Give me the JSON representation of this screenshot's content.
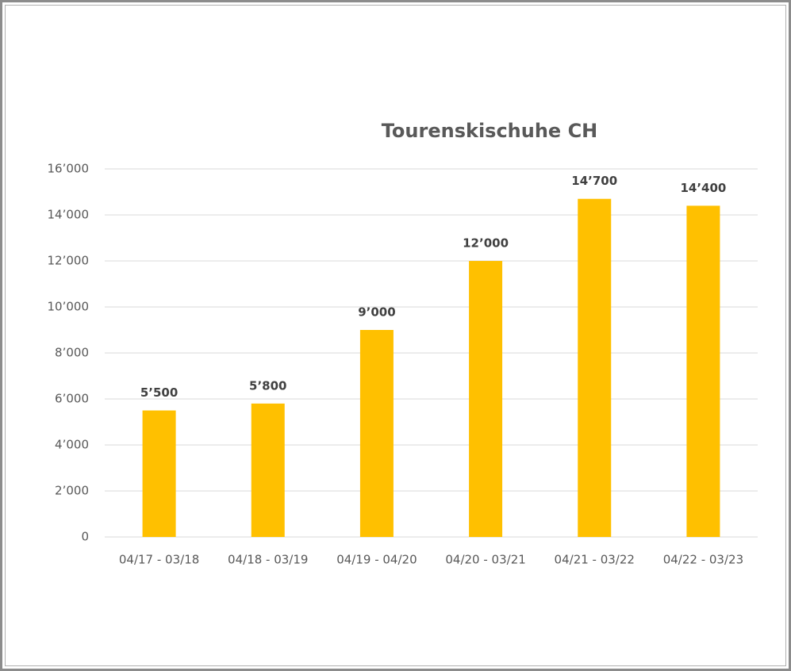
{
  "chart_data": {
    "type": "bar",
    "title": "Tourenskischuhe CH",
    "categories": [
      "04/17 - 03/18",
      "04/18 - 03/19",
      "04/19 - 04/20",
      "04/20 - 03/21",
      "04/21 - 03/22",
      "04/22 - 03/23"
    ],
    "values": [
      5500,
      5800,
      9000,
      12000,
      14700,
      14400
    ],
    "value_labels": [
      "5’500",
      "5’800",
      "9’000",
      "12’000",
      "14’700",
      "14’400"
    ],
    "color": "#ffc000",
    "ylim": [
      0,
      16000
    ],
    "yticks": [
      0,
      {
        "value": 2000,
        "label": "2’000"
      },
      {
        "value": 4000,
        "label": "4’000"
      },
      {
        "value": 6000,
        "label": "6’000"
      },
      {
        "value": 8000,
        "label": "8’000"
      },
      {
        "value": 10000,
        "label": "10’000"
      },
      {
        "value": 12000,
        "label": "12’000"
      },
      {
        "value": 14000,
        "label": "14’000"
      },
      {
        "value": 16000,
        "label": "16’000"
      }
    ],
    "grid": true
  }
}
